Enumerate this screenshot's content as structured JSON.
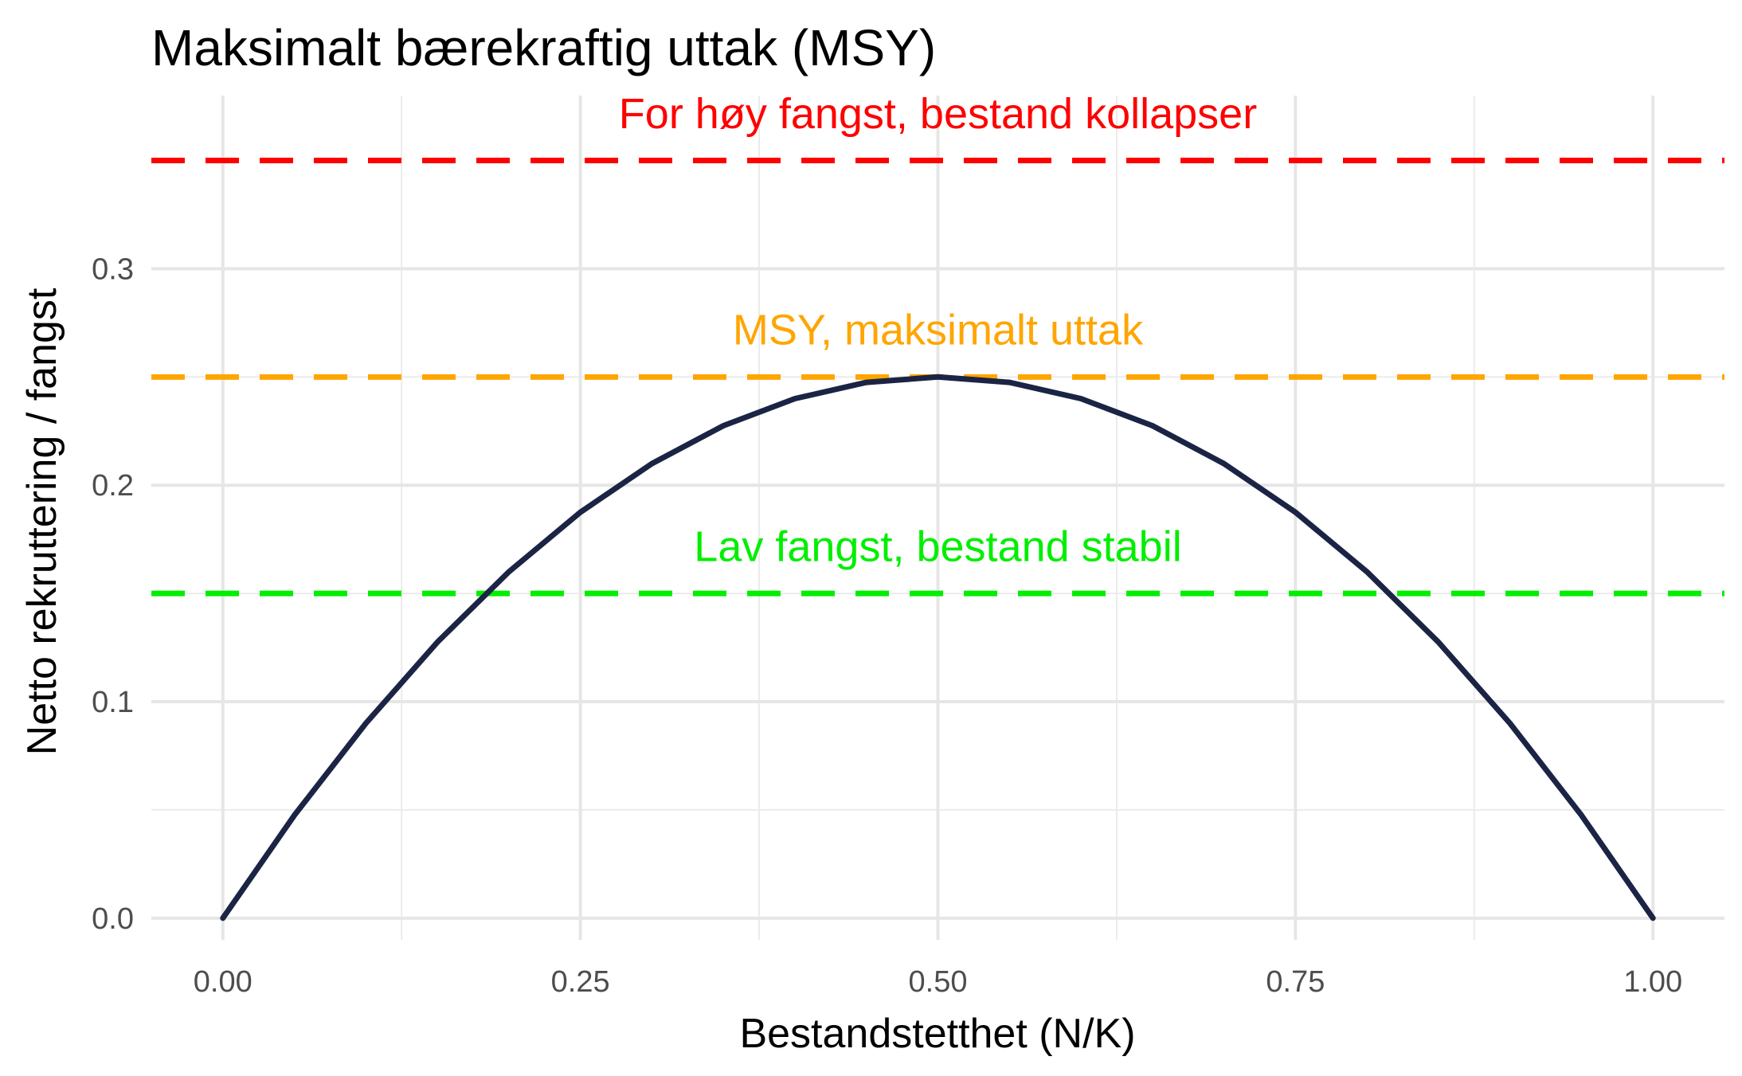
{
  "chart_data": {
    "type": "line",
    "title": "Maksimalt bærekraftig uttak (MSY)",
    "xlabel": "Bestandstetthet (N/K)",
    "ylabel": "Netto rekruttering / fangst",
    "xlim": [
      -0.05,
      1.05
    ],
    "ylim": [
      -0.01,
      0.38
    ],
    "x_ticks": [
      0,
      0.25,
      0.5,
      0.75,
      1.0
    ],
    "x_tick_labels": [
      "0.00",
      "0.25",
      "0.50",
      "0.75",
      "1.00"
    ],
    "y_ticks": [
      0,
      0.1,
      0.2,
      0.3
    ],
    "y_tick_labels": [
      "0.0",
      "0.1",
      "0.2",
      "0.3"
    ],
    "grid": true,
    "series": [
      {
        "color": "#1b2444",
        "style": "solid",
        "x": [
          0,
          0.05,
          0.1,
          0.15,
          0.2,
          0.25,
          0.3,
          0.35,
          0.4,
          0.45,
          0.5,
          0.55,
          0.6,
          0.65,
          0.7,
          0.75,
          0.8,
          0.85,
          0.9,
          0.95,
          1.0
        ],
        "y": [
          0,
          0.0475,
          0.09,
          0.1275,
          0.16,
          0.1875,
          0.21,
          0.2275,
          0.24,
          0.2475,
          0.25,
          0.2475,
          0.24,
          0.2275,
          0.21,
          0.1875,
          0.16,
          0.1275,
          0.09,
          0.0475,
          0
        ]
      }
    ],
    "hlines": [
      {
        "y": 0.35,
        "color": "#ff0000",
        "style": "dashed"
      },
      {
        "y": 0.25,
        "color": "#ffa500",
        "style": "dashed"
      },
      {
        "y": 0.15,
        "color": "#00ee00",
        "style": "dashed"
      }
    ],
    "annotations": [
      {
        "text": "For høy fangst, bestand kollapser",
        "x": 0.5,
        "y": 0.365,
        "color": "#ff0000"
      },
      {
        "text": "MSY, maksimalt uttak",
        "x": 0.5,
        "y": 0.265,
        "color": "#ffa500"
      },
      {
        "text": "Lav fangst, bestand stabil",
        "x": 0.5,
        "y": 0.165,
        "color": "#00ee00"
      }
    ]
  }
}
